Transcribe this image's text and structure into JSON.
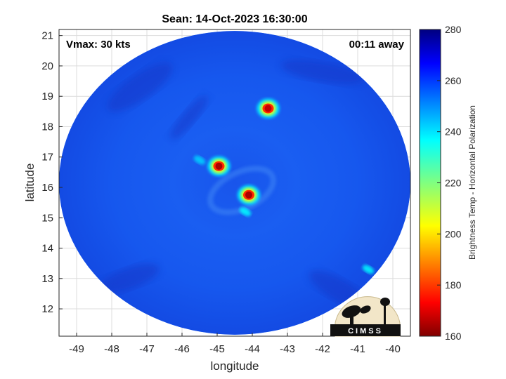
{
  "chart_data": {
    "type": "heatmap",
    "title": "Sean: 14-Oct-2023 16:30:00",
    "xlabel": "longitude",
    "ylabel": "latitude",
    "xlim": [
      -49.5,
      -39.5
    ],
    "ylim": [
      11.1,
      21.2
    ],
    "x_ticks": [
      -49,
      -48,
      -47,
      -46,
      -45,
      -44,
      -43,
      -42,
      -41,
      -40
    ],
    "y_ticks": [
      12,
      13,
      14,
      15,
      16,
      17,
      18,
      19,
      20,
      21
    ],
    "grid": true,
    "annotations": {
      "vmax": "Vmax: 30 kts",
      "time_offset": "00:11 away"
    },
    "colorbar": {
      "label": "Brightness Temp - Horizontal Polarization",
      "range": [
        160,
        280
      ],
      "ticks": [
        160,
        180,
        200,
        220,
        240,
        260,
        280
      ],
      "colormap": "jet"
    },
    "background_value": 255,
    "swath": {
      "center": [
        -44.5,
        16.15
      ],
      "radius_deg": 5.0
    },
    "cold_features": [
      {
        "lon": -44.95,
        "lat": 16.7,
        "value": 165
      },
      {
        "lon": -44.1,
        "lat": 15.75,
        "value": 165
      },
      {
        "lon": -43.55,
        "lat": 18.6,
        "value": 168
      },
      {
        "lon": -44.2,
        "lat": 15.2,
        "value": 235
      },
      {
        "lon": -40.7,
        "lat": 13.3,
        "value": 235
      },
      {
        "lon": -45.5,
        "lat": 16.9,
        "value": 240
      }
    ],
    "logo": "CIMSS"
  }
}
